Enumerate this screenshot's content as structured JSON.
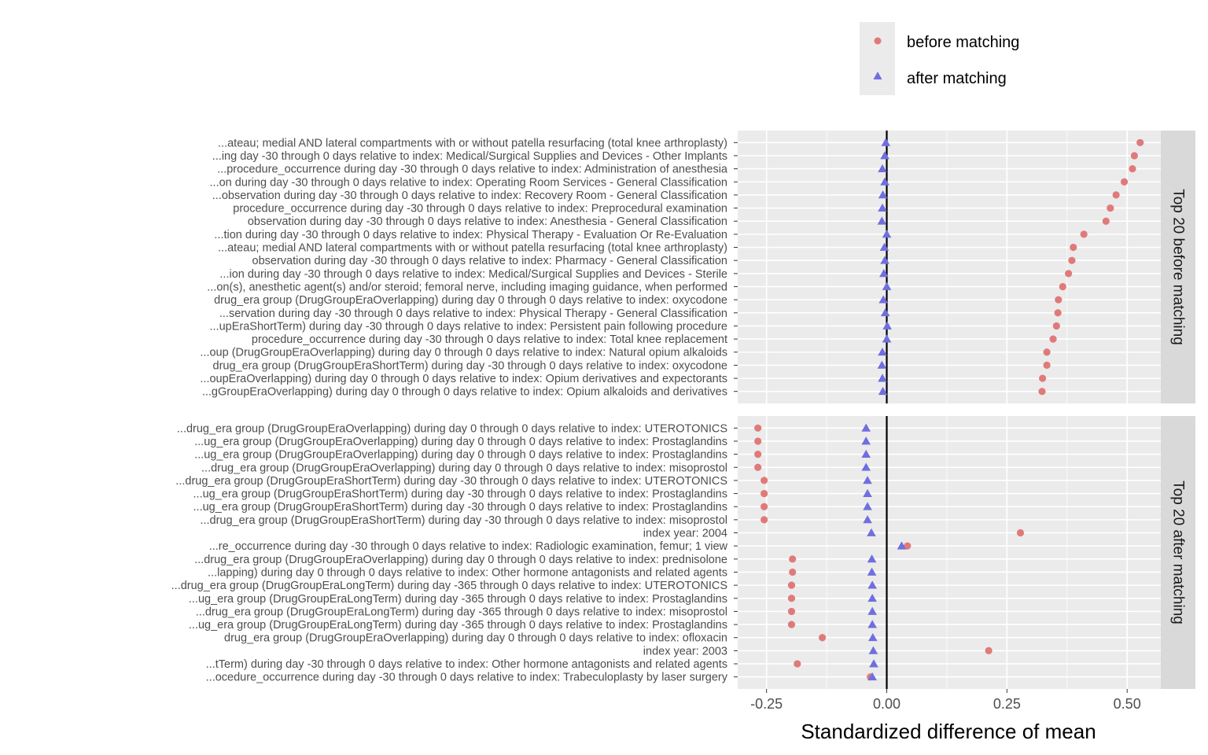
{
  "chart_data": {
    "type": "scatter",
    "xlabel": "Standardized difference of mean",
    "xlim": [
      -0.31,
      0.57
    ],
    "xticks": [
      -0.25,
      0,
      0.25,
      0.5
    ],
    "xtick_labels": [
      "-0.25",
      "0.00",
      "0.25",
      "0.50"
    ],
    "reference_line_x": 0,
    "grid": true,
    "legend": {
      "position": "top-right",
      "entries": [
        {
          "name": "before matching",
          "shape": "circle",
          "color": "#e07a7a"
        },
        {
          "name": "after matching",
          "shape": "triangle",
          "color": "#6f6fe0"
        }
      ]
    },
    "panels": [
      {
        "strip_label": "Top 20 before matching",
        "rows": [
          {
            "label": "...ateau; medial AND lateral compartments with or without patella resurfacing (total knee arthroplasty)",
            "before": 0.527,
            "after": -0.002
          },
          {
            "label": "...ing day -30 through 0 days relative to index: Medical/Surgical Supplies and Devices - Other Implants",
            "before": 0.515,
            "after": -0.004
          },
          {
            "label": "...procedure_occurrence during day -30 through 0 days relative to index: Administration of anesthesia",
            "before": 0.511,
            "after": -0.009
          },
          {
            "label": "...on during day -30 through 0 days relative to index: Operating Room Services - General Classification",
            "before": 0.494,
            "after": -0.004
          },
          {
            "label": "...observation during day -30 through 0 days relative to index: Recovery Room - General Classification",
            "before": 0.477,
            "after": -0.008
          },
          {
            "label": "procedure_occurrence during day -30 through 0 days relative to index: Preprocedural examination",
            "before": 0.465,
            "after": -0.009
          },
          {
            "label": "observation during day -30 through 0 days relative to index: Anesthesia - General Classification",
            "before": 0.456,
            "after": -0.01
          },
          {
            "label": "...tion during day -30 through 0 days relative to index: Physical Therapy - Evaluation Or Re-Evaluation",
            "before": 0.41,
            "after": 0.0
          },
          {
            "label": "...ateau; medial AND lateral compartments with or without patella resurfacing (total knee arthroplasty)",
            "before": 0.388,
            "after": -0.005
          },
          {
            "label": "observation during day -30 through 0 days relative to index: Pharmacy - General Classification",
            "before": 0.385,
            "after": -0.004
          },
          {
            "label": "...ion during day -30 through 0 days relative to index: Medical/Surgical Supplies and Devices - Sterile",
            "before": 0.378,
            "after": -0.006
          },
          {
            "label": "...on(s), anesthetic agent(s) and/or steroid; femoral nerve, including imaging guidance, when performed",
            "before": 0.366,
            "after": 0.0
          },
          {
            "label": "drug_era group (DrugGroupEraOverlapping) during day 0 through 0 days relative to index: oxycodone",
            "before": 0.357,
            "after": -0.007
          },
          {
            "label": "...servation during day -30 through 0 days relative to index: Physical Therapy - General Classification",
            "before": 0.356,
            "after": -0.003
          },
          {
            "label": "...upEraShortTerm) during day -30 through 0 days relative to index: Persistent pain following procedure",
            "before": 0.353,
            "after": 0.001
          },
          {
            "label": "procedure_occurrence during day -30 through 0 days relative to index: Total knee replacement",
            "before": 0.346,
            "after": 0.0
          },
          {
            "label": "...oup (DrugGroupEraOverlapping) during day 0 through 0 days relative to index: Natural opium alkaloids",
            "before": 0.333,
            "after": -0.009
          },
          {
            "label": "drug_era group (DrugGroupEraShortTerm) during day -30 through 0 days relative to index: oxycodone",
            "before": 0.333,
            "after": -0.01
          },
          {
            "label": "...oupEraOverlapping) during day 0 through 0 days relative to index: Opium derivatives and expectorants",
            "before": 0.324,
            "after": -0.009
          },
          {
            "label": "...gGroupEraOverlapping) during day 0 through 0 days relative to index: Opium alkaloids and derivatives",
            "before": 0.323,
            "after": -0.008
          }
        ]
      },
      {
        "strip_label": "Top 20 after matching",
        "rows": [
          {
            "label": "...drug_era group (DrugGroupEraOverlapping) during day 0 through 0 days relative to index: UTEROTONICS",
            "before": -0.268,
            "after": -0.043
          },
          {
            "label": "...ug_era group (DrugGroupEraOverlapping) during day 0 through 0 days relative to index: Prostaglandins",
            "before": -0.268,
            "after": -0.043
          },
          {
            "label": "...ug_era group (DrugGroupEraOverlapping) during day 0 through 0 days relative to index: Prostaglandins",
            "before": -0.268,
            "after": -0.043
          },
          {
            "label": "...drug_era group (DrugGroupEraOverlapping) during day 0 through 0 days relative to index: misoprostol",
            "before": -0.268,
            "after": -0.043
          },
          {
            "label": "...drug_era group (DrugGroupEraShortTerm) during day -30 through 0 days relative to index: UTEROTONICS",
            "before": -0.255,
            "after": -0.04
          },
          {
            "label": "...ug_era group (DrugGroupEraShortTerm) during day -30 through 0 days relative to index: Prostaglandins",
            "before": -0.255,
            "after": -0.04
          },
          {
            "label": "...ug_era group (DrugGroupEraShortTerm) during day -30 through 0 days relative to index: Prostaglandins",
            "before": -0.255,
            "after": -0.04
          },
          {
            "label": "...drug_era group (DrugGroupEraShortTerm) during day -30 through 0 days relative to index: misoprostol",
            "before": -0.255,
            "after": -0.04
          },
          {
            "label": "index year: 2004",
            "before": 0.278,
            "after": -0.032
          },
          {
            "label": "...re_occurrence during day -30 through 0 days relative to index: Radiologic examination, femur; 1 view",
            "before": 0.043,
            "after": 0.031
          },
          {
            "label": "...drug_era group (DrugGroupEraOverlapping) during day 0 through 0 days relative to index: prednisolone",
            "before": -0.196,
            "after": -0.031
          },
          {
            "label": "...lapping) during day 0 through 0 days relative to index: Other hormone antagonists and related agents",
            "before": -0.196,
            "after": -0.031
          },
          {
            "label": "...drug_era group (DrugGroupEraLongTerm) during day -365 through 0 days relative to index: UTEROTONICS",
            "before": -0.198,
            "after": -0.03
          },
          {
            "label": "...ug_era group (DrugGroupEraLongTerm) during day -365 through 0 days relative to index: Prostaglandins",
            "before": -0.198,
            "after": -0.03
          },
          {
            "label": "...drug_era group (DrugGroupEraLongTerm) during day -365 through 0 days relative to index: misoprostol",
            "before": -0.198,
            "after": -0.03
          },
          {
            "label": "...ug_era group (DrugGroupEraLongTerm) during day -365 through 0 days relative to index: Prostaglandins",
            "before": -0.198,
            "after": -0.03
          },
          {
            "label": "drug_era group (DrugGroupEraOverlapping) during day 0 through 0 days relative to index: ofloxacin",
            "before": -0.134,
            "after": -0.029
          },
          {
            "label": "index year: 2003",
            "before": 0.212,
            "after": -0.028
          },
          {
            "label": "...tTerm) during day -30 through 0 days relative to index: Other hormone antagonists and related agents",
            "before": -0.186,
            "after": -0.027
          },
          {
            "label": "...ocedure_occurrence during day -30 through 0 days relative to index: Trabeculoplasty by laser surgery",
            "before": -0.034,
            "after": -0.03
          }
        ]
      }
    ]
  }
}
